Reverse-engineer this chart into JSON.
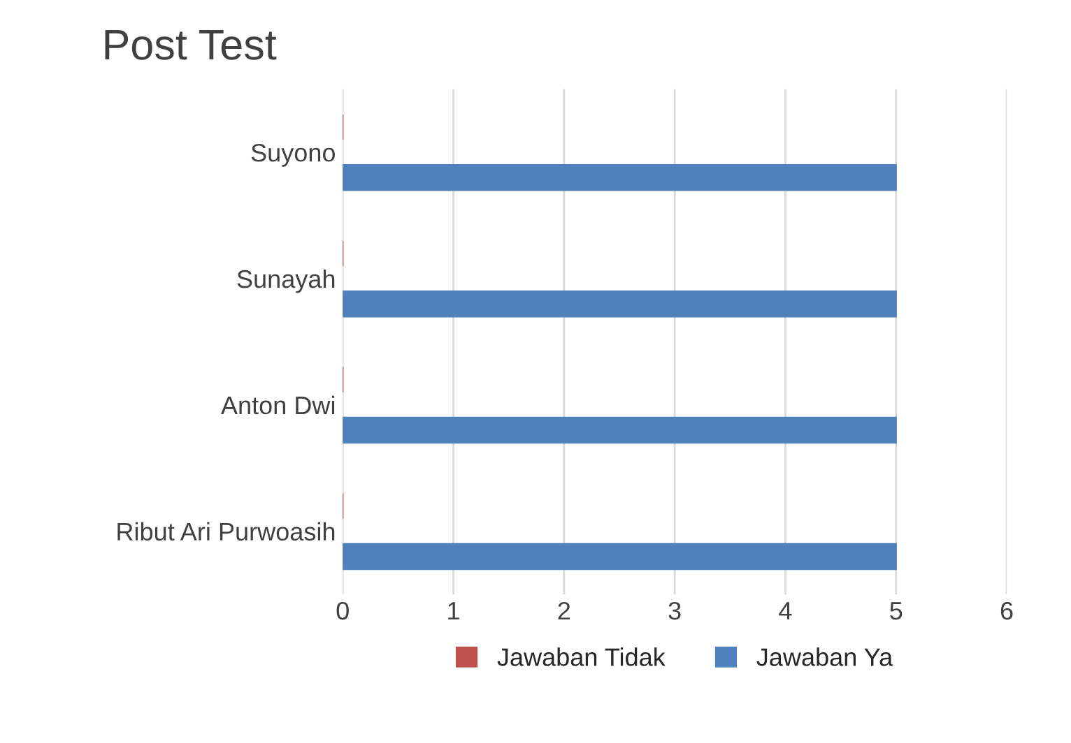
{
  "chart_data": {
    "type": "bar",
    "orientation": "horizontal",
    "title": "Post Test",
    "categories": [
      "Suyono",
      "Sunayah",
      "Anton Dwi",
      "Ribut Ari Purwoasih"
    ],
    "series": [
      {
        "name": "Jawaban Tidak",
        "color": "#c0504d",
        "values": [
          0,
          0,
          0,
          0
        ]
      },
      {
        "name": "Jawaban Ya",
        "color": "#4f81bd",
        "values": [
          5,
          5,
          5,
          5
        ]
      }
    ],
    "xlim": [
      0,
      6
    ],
    "xticks": [
      0,
      1,
      2,
      3,
      4,
      5,
      6
    ],
    "grid": "x",
    "legend": "bottom"
  }
}
